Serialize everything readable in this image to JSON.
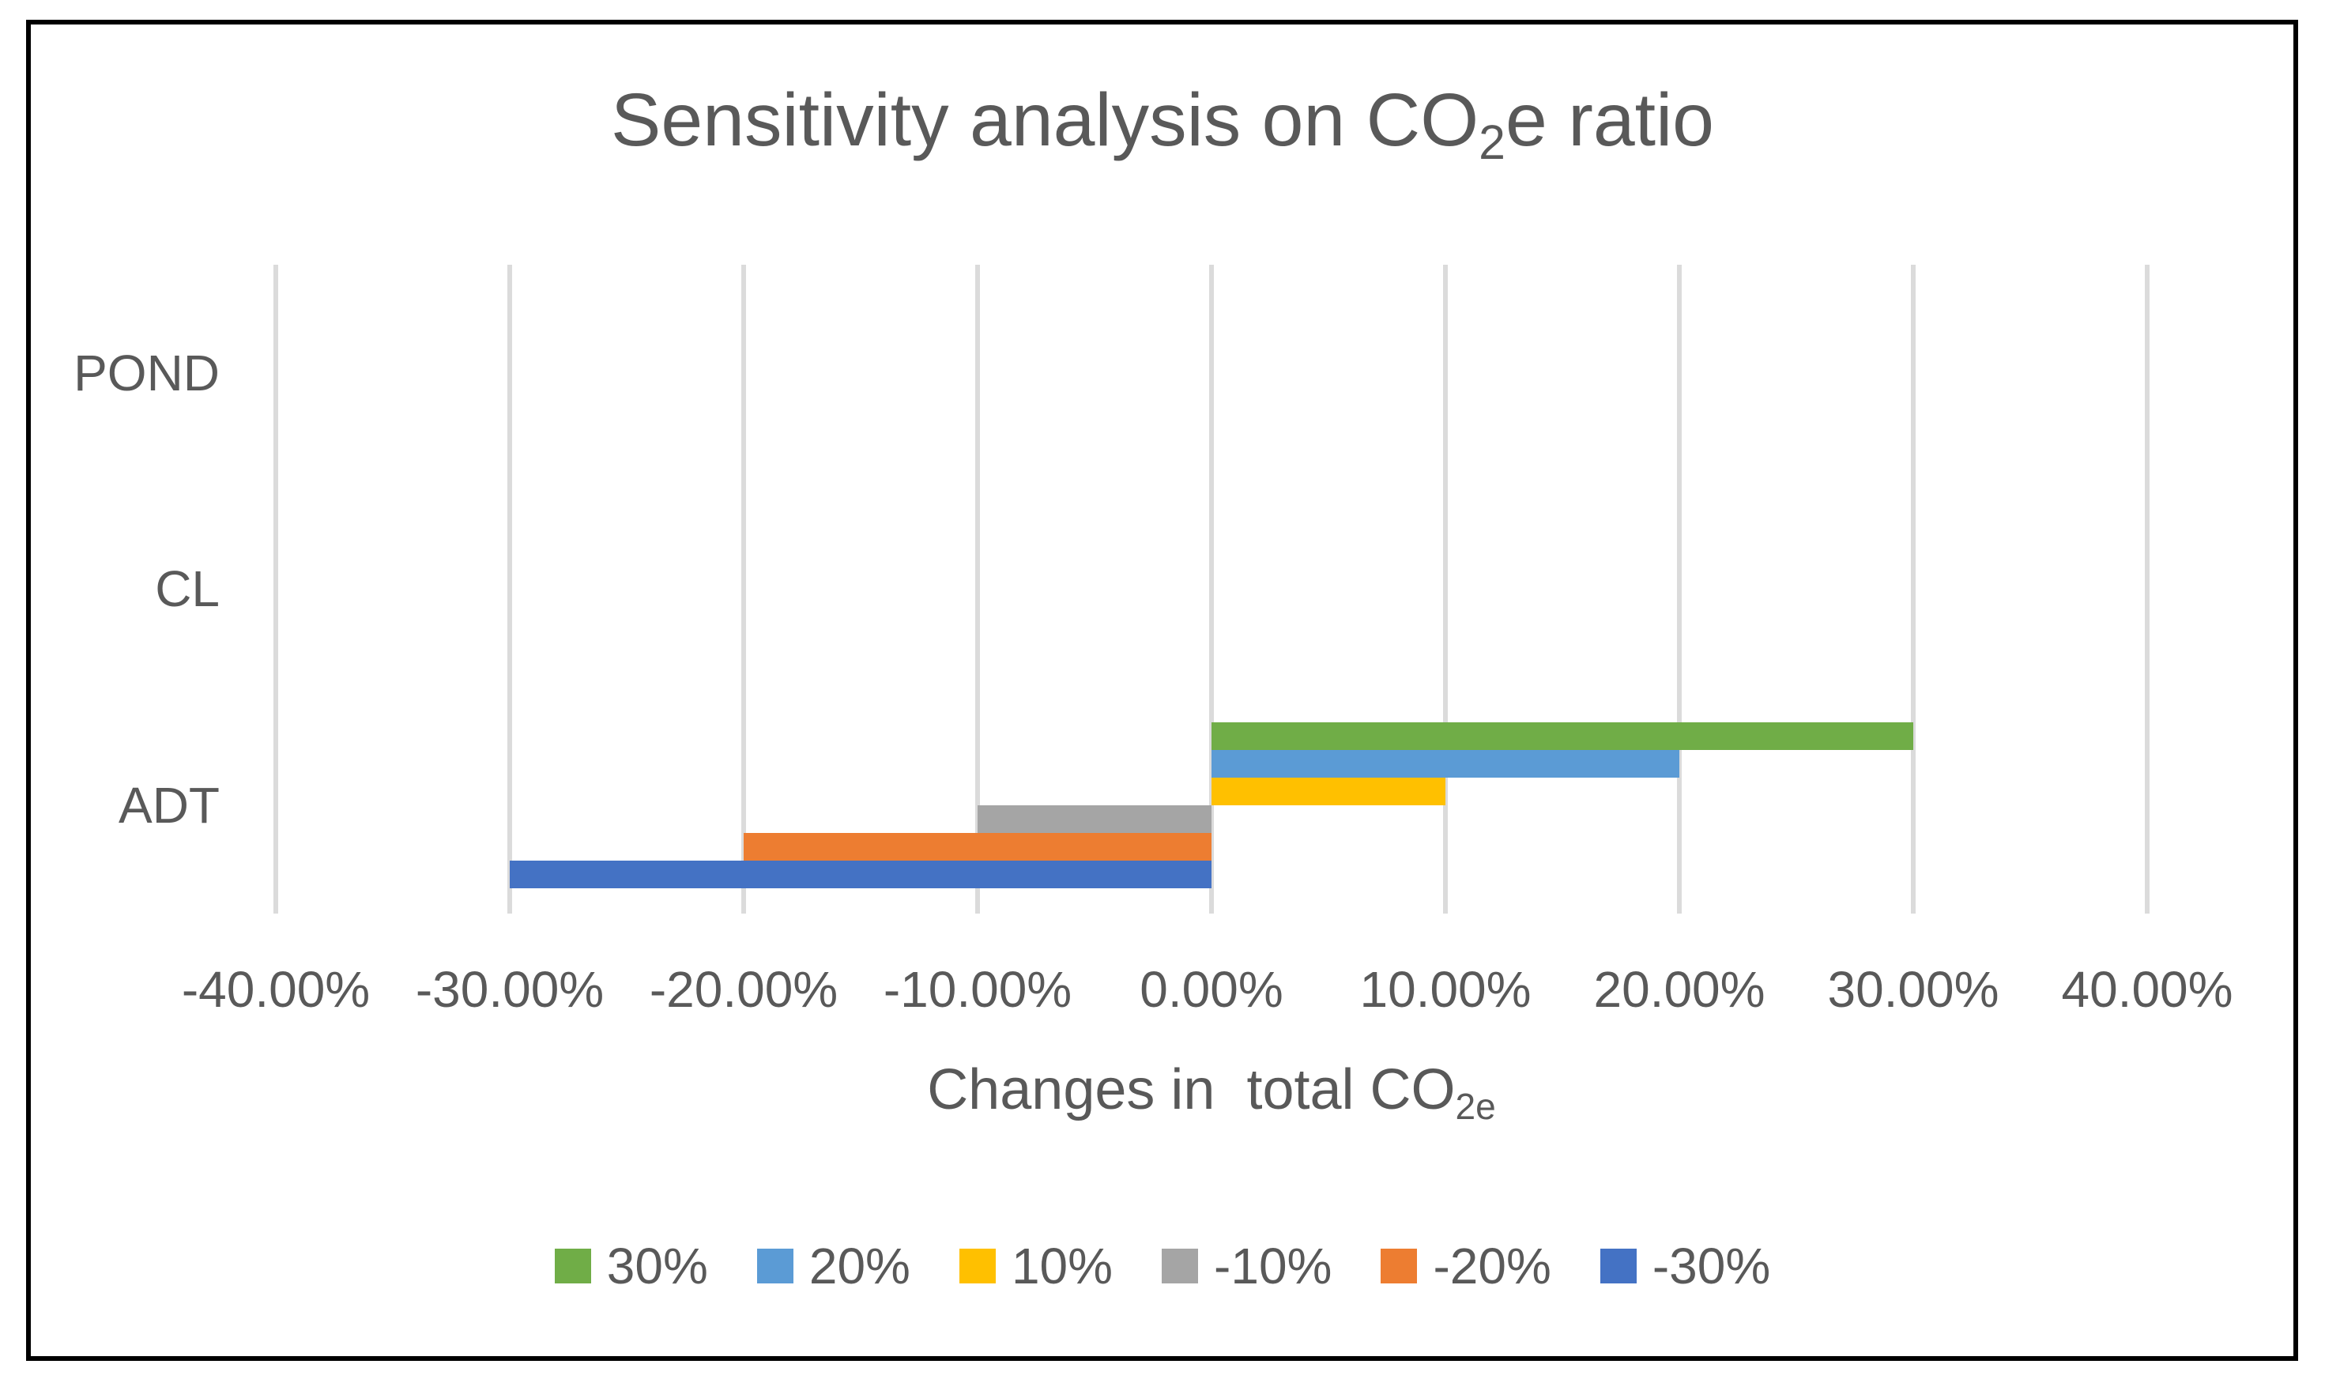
{
  "title": {
    "pre": "Sensitivity analysis on CO",
    "sub": "2",
    "post": "e ratio"
  },
  "axis_title": {
    "pre": "Changes in  total CO",
    "sub": "2e"
  },
  "chart_data": {
    "type": "bar",
    "orientation": "horizontal",
    "title": "Sensitivity analysis on CO2e ratio",
    "xlabel": "Changes in total CO2e",
    "categories": [
      "POND",
      "CL",
      "ADT"
    ],
    "series": [
      {
        "name": "30%",
        "color": "#70AD47",
        "values": [
          0,
          0,
          30
        ]
      },
      {
        "name": "20%",
        "color": "#5B9BD5",
        "values": [
          0,
          0,
          20
        ]
      },
      {
        "name": "10%",
        "color": "#FFC000",
        "values": [
          0,
          0,
          10
        ]
      },
      {
        "name": "-10%",
        "color": "#A5A5A5",
        "values": [
          0,
          0,
          -10
        ]
      },
      {
        "name": "-20%",
        "color": "#ED7D31",
        "values": [
          0,
          0,
          -20
        ]
      },
      {
        "name": "-30%",
        "color": "#4472C4",
        "values": [
          0,
          0,
          -30
        ]
      }
    ],
    "xlim": [
      -40,
      40
    ],
    "x_ticks": [
      {
        "value": -40,
        "label": "-40.00%"
      },
      {
        "value": -30,
        "label": "-30.00%"
      },
      {
        "value": -20,
        "label": "-20.00%"
      },
      {
        "value": -10,
        "label": "-10.00%"
      },
      {
        "value": 0,
        "label": "0.00%"
      },
      {
        "value": 10,
        "label": "10.00%"
      },
      {
        "value": 20,
        "label": "20.00%"
      },
      {
        "value": 30,
        "label": "30.00%"
      },
      {
        "value": 40,
        "label": "40.00%"
      }
    ],
    "grid": "vertical",
    "legend_position": "bottom",
    "gridline_color": "#DBDBDB",
    "text_color": "#595959",
    "border_color": "#000000",
    "background_color": "#FFFFFF"
  }
}
